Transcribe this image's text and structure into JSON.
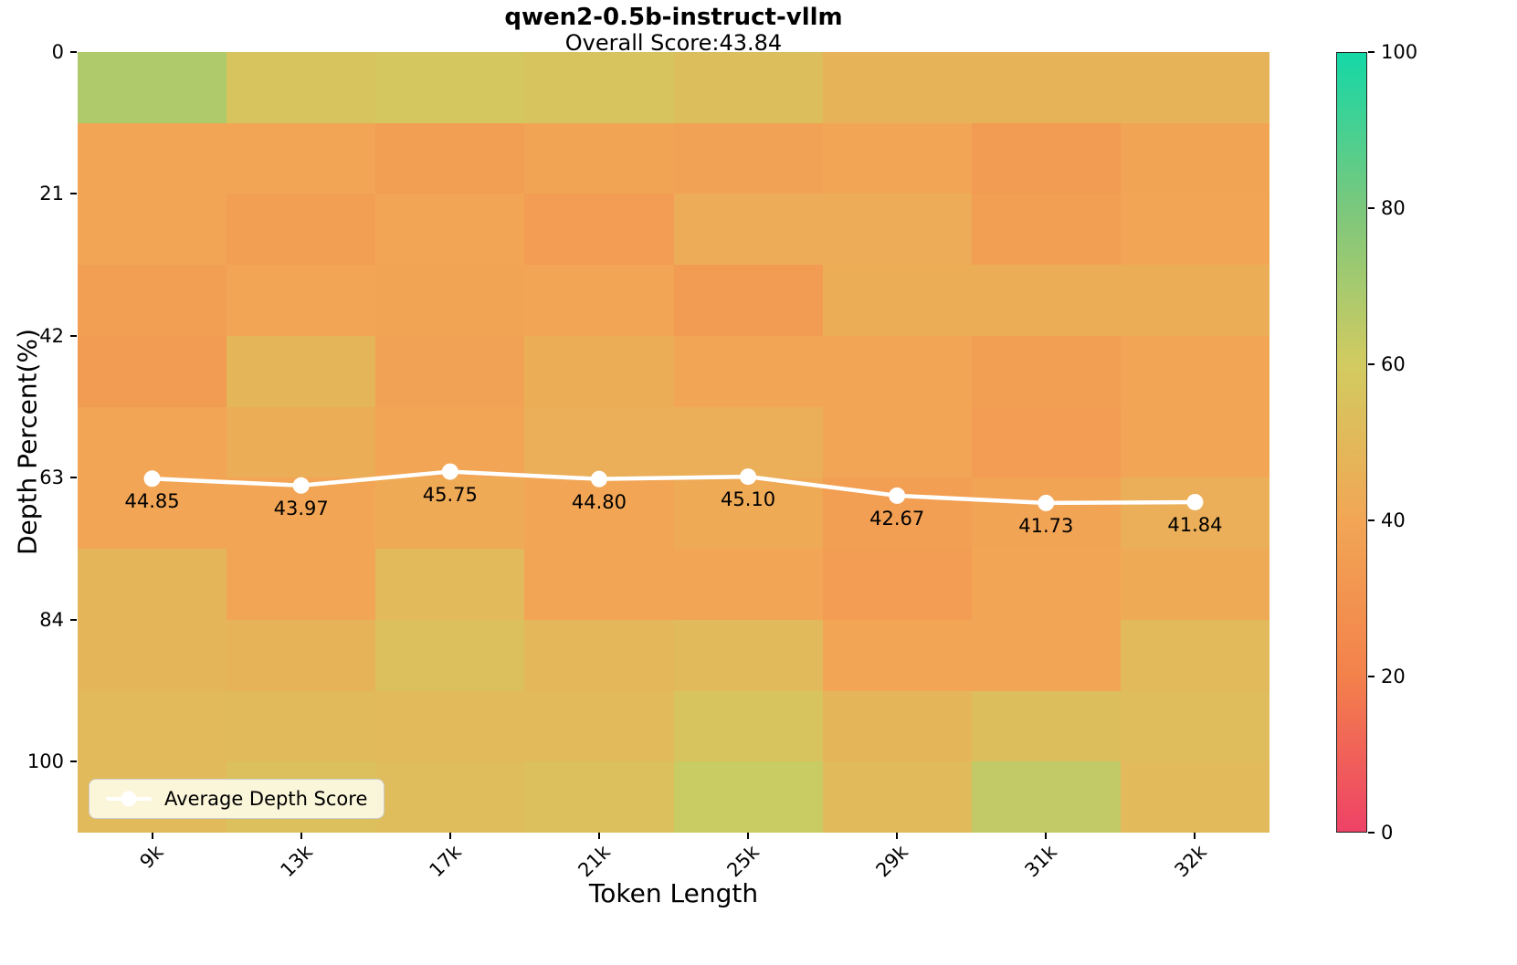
{
  "title": "qwen2-0.5b-instruct-vllm",
  "subtitle": "Overall Score:43.84",
  "axes": {
    "x_label": "Token Length",
    "y_label": "Depth Percent(%)",
    "x_ticks": [
      "9k",
      "13k",
      "17k",
      "21k",
      "25k",
      "29k",
      "31k",
      "32k"
    ],
    "y_ticks": [
      {
        "label": "0",
        "row": 0
      },
      {
        "label": "21",
        "row": 2
      },
      {
        "label": "42",
        "row": 4
      },
      {
        "label": "63",
        "row": 6
      },
      {
        "label": "84",
        "row": 8
      },
      {
        "label": "100",
        "row": 10
      }
    ]
  },
  "legend": {
    "label": "Average Depth Score"
  },
  "colorbar": {
    "tick_values": [
      100,
      80,
      60,
      40,
      20,
      0
    ],
    "tick_labels": [
      "100",
      "80",
      "60",
      "40",
      "20",
      "0"
    ],
    "stops": [
      {
        "value": 0,
        "color": "#ee4266"
      },
      {
        "value": 20,
        "color": "#f3814b"
      },
      {
        "value": 40,
        "color": "#f2a655"
      },
      {
        "value": 60,
        "color": "#d2cb60"
      },
      {
        "value": 80,
        "color": "#7bc87c"
      },
      {
        "value": 100,
        "color": "#14d8a6"
      }
    ]
  },
  "chart_data": {
    "type": "heatmap",
    "title": "qwen2-0.5b-instruct-vllm",
    "subtitle": "Overall Score:43.84",
    "xlabel": "Token Length",
    "ylabel": "Depth Percent(%)",
    "columns": [
      "9k",
      "13k",
      "17k",
      "21k",
      "25k",
      "29k",
      "31k",
      "32k"
    ],
    "row_tick_labels": [
      "0",
      "21",
      "42",
      "63",
      "84",
      "100"
    ],
    "n_rows": 11,
    "colorbar_range": [
      0,
      100
    ],
    "colorbar_ticks": [
      0,
      20,
      40,
      60,
      80,
      100
    ],
    "grid_estimated": [
      [
        68,
        56,
        58,
        56,
        53,
        47,
        47,
        47
      ],
      [
        40,
        40,
        36,
        39,
        38,
        40,
        34,
        39
      ],
      [
        40,
        36,
        40,
        35,
        43,
        43,
        36,
        40
      ],
      [
        36,
        40,
        39,
        40,
        34,
        44,
        44,
        44
      ],
      [
        34,
        48,
        38,
        44,
        40,
        40,
        36,
        40
      ],
      [
        40,
        44,
        40,
        45,
        45,
        40,
        35,
        40
      ],
      [
        40,
        40,
        42,
        40,
        42,
        36,
        39,
        45
      ],
      [
        48,
        40,
        50,
        40,
        40,
        35,
        40,
        42
      ],
      [
        48,
        47,
        54,
        49,
        51,
        40,
        40,
        50
      ],
      [
        50,
        51,
        50,
        50,
        56,
        48,
        53,
        52
      ],
      [
        51,
        54,
        52,
        54,
        62,
        51,
        64,
        50
      ]
    ],
    "line_series": {
      "name": "Average Depth Score",
      "values": [
        44.85,
        43.97,
        45.75,
        44.8,
        45.1,
        42.67,
        41.73,
        41.84
      ],
      "labels": [
        "44.85",
        "43.97",
        "45.75",
        "44.80",
        "45.10",
        "42.67",
        "41.73",
        "41.84"
      ]
    }
  }
}
